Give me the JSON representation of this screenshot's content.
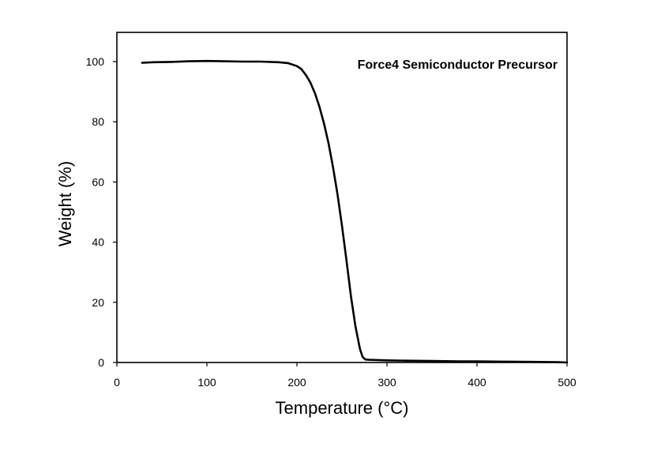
{
  "chart_data": {
    "type": "line",
    "title": "",
    "xlabel": "Temperature (°C)",
    "ylabel": "Weight (%)",
    "xlim": [
      0,
      500
    ],
    "ylim": [
      0,
      110
    ],
    "x_ticks": [
      0,
      100,
      200,
      300,
      400,
      500
    ],
    "y_ticks": [
      0,
      20,
      40,
      60,
      80,
      100
    ],
    "x_tick_labels": [
      "0",
      "100",
      "200",
      "300",
      "400",
      "500"
    ],
    "y_tick_labels": [
      "0",
      "20",
      "40",
      "60",
      "80",
      "100"
    ],
    "grid": false,
    "legend": "none",
    "annotations": [
      {
        "text": "Force4 Semiconductor Precursor",
        "position": "top-right"
      }
    ],
    "series": [
      {
        "color": "#000000",
        "points": [
          [
            28,
            99.6
          ],
          [
            40,
            99.8
          ],
          [
            60,
            99.9
          ],
          [
            80,
            100.1
          ],
          [
            100,
            100.2
          ],
          [
            120,
            100.1
          ],
          [
            140,
            100.0
          ],
          [
            160,
            100.0
          ],
          [
            180,
            99.8
          ],
          [
            190,
            99.5
          ],
          [
            200,
            98.5
          ],
          [
            205,
            97.5
          ],
          [
            210,
            95.5
          ],
          [
            215,
            93.0
          ],
          [
            220,
            89.5
          ],
          [
            225,
            85.0
          ],
          [
            230,
            79.5
          ],
          [
            235,
            73.0
          ],
          [
            240,
            65.0
          ],
          [
            245,
            56.0
          ],
          [
            250,
            45.5
          ],
          [
            255,
            34.0
          ],
          [
            260,
            22.0
          ],
          [
            265,
            12.0
          ],
          [
            270,
            4.5
          ],
          [
            273,
            1.8
          ],
          [
            276,
            1.0
          ],
          [
            280,
            0.9
          ],
          [
            300,
            0.7
          ],
          [
            320,
            0.6
          ],
          [
            350,
            0.5
          ],
          [
            380,
            0.4
          ],
          [
            400,
            0.4
          ],
          [
            430,
            0.3
          ],
          [
            460,
            0.2
          ],
          [
            490,
            0.1
          ],
          [
            500,
            0.0
          ]
        ]
      }
    ]
  }
}
